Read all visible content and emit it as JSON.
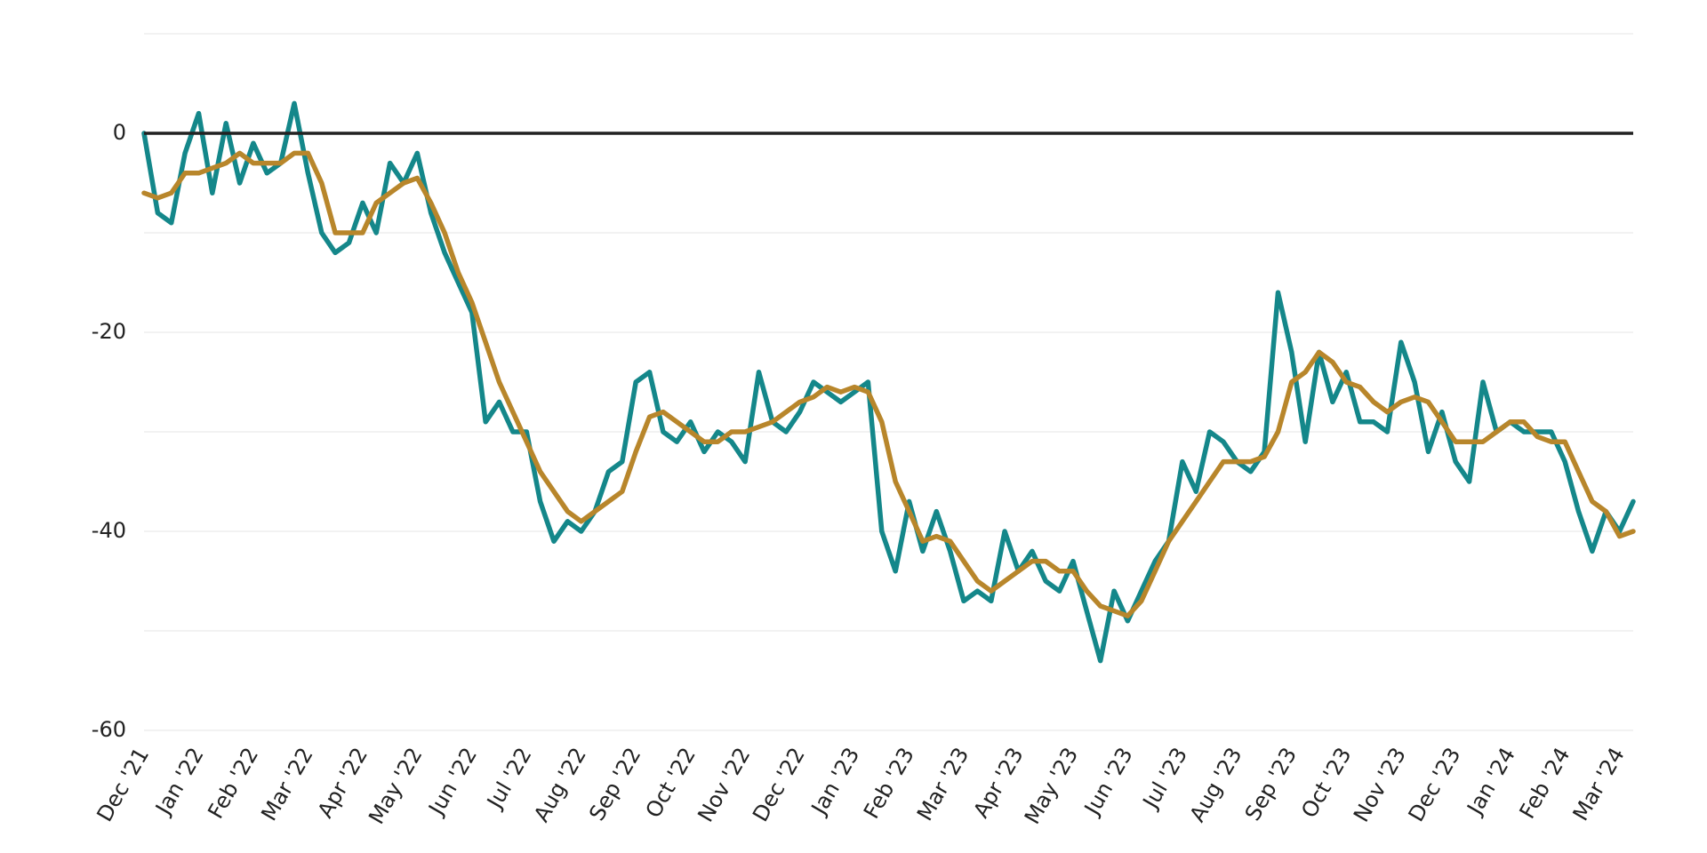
{
  "chart_data": {
    "type": "line",
    "categories": [
      "Dec '21",
      null,
      null,
      null,
      "Jan '22",
      null,
      null,
      null,
      "Feb '22",
      null,
      null,
      null,
      "Mar '22",
      null,
      null,
      null,
      "Apr '22",
      null,
      null,
      null,
      "May '22",
      null,
      null,
      null,
      "Jun '22",
      null,
      null,
      null,
      "Jul '22",
      null,
      null,
      null,
      "Aug '22",
      null,
      null,
      null,
      "Sep '22",
      null,
      null,
      null,
      "Oct '22",
      null,
      null,
      null,
      "Nov '22",
      null,
      null,
      null,
      "Dec '22",
      null,
      null,
      null,
      "Jan '23",
      null,
      null,
      null,
      "Feb '23",
      null,
      null,
      null,
      "Mar '23",
      null,
      null,
      null,
      "Apr '23",
      null,
      null,
      null,
      "May '23",
      null,
      null,
      null,
      "Jun '23",
      null,
      null,
      null,
      "Jul '23",
      null,
      null,
      null,
      "Aug '23",
      null,
      null,
      null,
      "Sep '23",
      null,
      null,
      null,
      "Oct '23",
      null,
      null,
      null,
      "Nov '23",
      null,
      null,
      null,
      "Dec '23",
      null,
      null,
      null,
      "Jan '24",
      null,
      null,
      null,
      "Feb '24",
      null,
      null,
      null,
      "Mar '24",
      null
    ],
    "series": [
      {
        "color": "#14878a",
        "values": [
          0,
          -8,
          -9,
          -2,
          2,
          -6,
          1,
          -5,
          -1,
          -4,
          -3,
          3,
          -4,
          -10,
          -12,
          -11,
          -7,
          -10,
          -3,
          -5,
          -2,
          -8,
          -12,
          -15,
          -18,
          -29,
          -27,
          -30,
          -30,
          -37,
          -41,
          -39,
          -40,
          -38,
          -34,
          -33,
          -25,
          -24,
          -30,
          -31,
          -29,
          -32,
          -30,
          -31,
          -33,
          -24,
          -29,
          -30,
          -28,
          -25,
          -26,
          -27,
          -26,
          -25,
          -40,
          -44,
          -37,
          -42,
          -38,
          -42,
          -47,
          -46,
          -47,
          -40,
          -44,
          -42,
          -45,
          -46,
          -43,
          -48,
          -53,
          -46,
          -49,
          -46,
          -43,
          -41,
          -33,
          -36,
          -30,
          -31,
          -33,
          -34,
          -32,
          -16,
          -22,
          -31,
          -22,
          -27,
          -24,
          -29,
          -29,
          -30,
          -21,
          -25,
          -32,
          -28,
          -33,
          -35,
          -25,
          -30,
          -29,
          -30,
          -30,
          -30,
          -33,
          -38,
          -42,
          -38,
          -40,
          -37
        ]
      },
      {
        "color": "#b8862b",
        "values": [
          -6,
          -6.5,
          -6,
          -4,
          -4,
          -3.5,
          -3,
          -2,
          -3,
          -3,
          -3,
          -2,
          -2,
          -5,
          -10,
          -10,
          -10,
          -7,
          -6,
          -5,
          -4.5,
          -7,
          -10,
          -14,
          -17,
          -21,
          -25,
          -28,
          -31,
          -34,
          -36,
          -38,
          -39,
          -38,
          -37,
          -36,
          -32,
          -28.5,
          -28,
          -29,
          -30,
          -31,
          -31,
          -30,
          -30,
          -29.5,
          -29,
          -28,
          -27,
          -26.5,
          -25.5,
          -26,
          -25.5,
          -26,
          -29,
          -35,
          -38,
          -41,
          -40.5,
          -41,
          -43,
          -45,
          -46,
          -45,
          -44,
          -43,
          -43,
          -44,
          -44,
          -46,
          -47.5,
          -48,
          -48.5,
          -47,
          -44,
          -41,
          -39,
          -37,
          -35,
          -33,
          -33,
          -33,
          -32.5,
          -30,
          -25,
          -24,
          -22,
          -23,
          -25,
          -25.5,
          -27,
          -28,
          -27,
          -26.5,
          -27,
          -29,
          -31,
          -31,
          -31,
          -30,
          -29,
          -29,
          -30.5,
          -31,
          -31,
          -34,
          -37,
          -38,
          -40.5,
          -40
        ]
      }
    ],
    "ylim": [
      -60,
      10
    ],
    "yticks": [
      0,
      -20,
      -40,
      -60
    ],
    "minor_yticks": [
      10,
      -10,
      -30,
      -50
    ],
    "grid": true,
    "zero_line": true
  }
}
